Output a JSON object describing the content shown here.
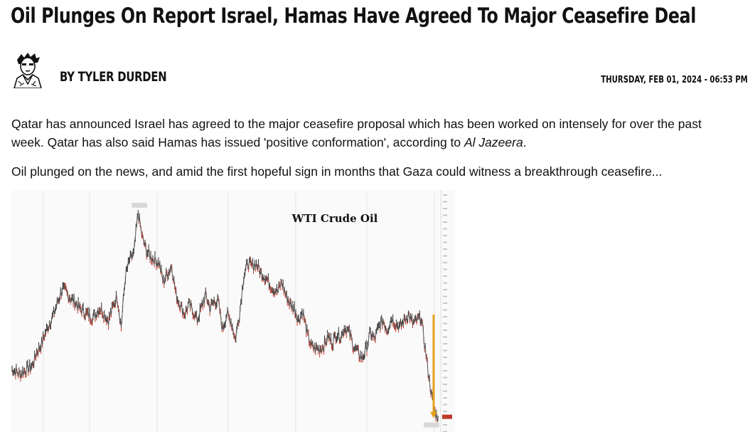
{
  "article": {
    "headline": "Oil Plunges On Report Israel, Hamas Have Agreed To Major Ceasefire Deal",
    "byline": "BY TYLER DURDEN",
    "date": "THURSDAY, FEB 01, 2024 - 06:53 PM",
    "paragraph1_text": "Qatar has announced Israel has agreed to the major ceasefire proposal which has been worked on intensely for over the past week. Qatar has also said Hamas has issued 'positive conformation', according to ",
    "paragraph1_source": "Al Jazeera",
    "paragraph1_end": ".",
    "paragraph2": "Oil plunged on the news, and amid the first hopeful sign in months that Gaza could witness a breakthrough ceasefire..."
  },
  "chart": {
    "title": "WTI Crude Oil",
    "line_color": "#555555",
    "up_color": "#2e2e2e",
    "down_color": "#c0392b",
    "arrow_color": "#e3a21a",
    "last_badge_color": "#c0392b"
  },
  "chart_data": {
    "type": "line",
    "title": "WTI Crude Oil",
    "xlabel": "",
    "ylabel": "",
    "x": [
      0,
      1,
      2,
      3,
      4,
      5,
      6,
      7,
      8,
      9,
      10,
      11,
      12,
      13,
      14,
      15,
      16,
      17,
      18,
      19,
      20,
      21,
      22,
      23,
      24,
      25,
      26,
      27,
      28,
      29,
      30,
      31,
      32,
      33,
      34,
      35,
      36,
      37,
      38,
      39,
      40,
      41,
      42,
      43,
      44,
      45,
      46,
      47,
      48,
      49,
      50,
      51,
      52,
      53,
      54,
      55,
      56,
      57,
      58,
      59,
      60,
      61,
      62,
      63,
      64,
      65,
      66,
      67,
      68,
      69,
      70,
      71,
      72,
      73,
      74,
      75,
      76,
      77,
      78,
      79,
      80,
      81,
      82,
      83,
      84,
      85,
      86,
      87,
      88,
      89,
      90,
      91,
      92,
      93,
      94,
      95,
      96,
      97,
      98,
      99,
      100,
      101
    ],
    "series": [
      {
        "values": [
          72.9,
          72.8,
          72.7,
          72.8,
          72.9,
          73.0,
          73.4,
          73.6,
          74.0,
          74.3,
          74.6,
          75.0,
          75.4,
          75.3,
          75.1,
          75.0,
          74.8,
          74.7,
          74.6,
          74.5,
          74.6,
          74.8,
          74.6,
          74.4,
          74.8,
          75.2,
          74.2,
          75.8,
          76.3,
          76.5,
          77.8,
          77.0,
          76.6,
          76.4,
          76.3,
          76.2,
          75.6,
          75.9,
          76.1,
          75.2,
          74.9,
          74.6,
          74.9,
          74.7,
          74.4,
          74.8,
          75.2,
          74.8,
          75.0,
          75.0,
          74.1,
          74.6,
          74.4,
          73.8,
          74.6,
          75.8,
          76.2,
          76.1,
          76.2,
          75.9,
          75.8,
          75.6,
          75.4,
          75.3,
          75.6,
          75.2,
          74.9,
          74.8,
          74.4,
          74.7,
          74.0,
          73.6,
          73.5,
          73.5,
          73.6,
          73.9,
          73.7,
          74.0,
          73.9,
          74.2,
          74.0,
          73.6,
          73.4,
          73.2,
          73.5,
          74.0,
          73.8,
          74.2,
          74.4,
          74.1,
          74.5,
          74.3,
          74.2,
          74.4,
          74.6,
          74.3,
          74.4,
          74.5,
          73.5,
          72.5,
          71.6,
          71.3
        ],
        "color": "#555555"
      }
    ],
    "ylim": [
      71,
      78.2
    ],
    "grid": true,
    "legend": "none",
    "annotations": [
      "arrow down to last price"
    ]
  }
}
